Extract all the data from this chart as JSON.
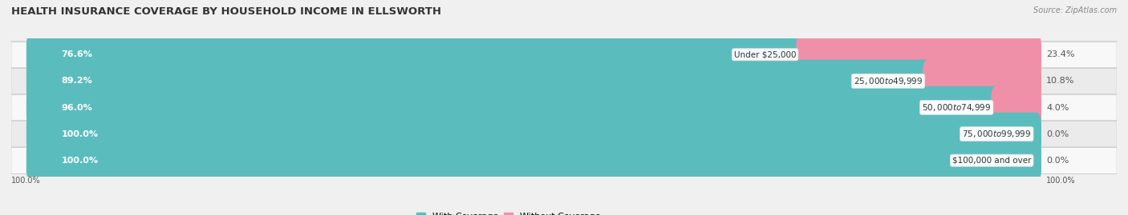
{
  "title": "HEALTH INSURANCE COVERAGE BY HOUSEHOLD INCOME IN ELLSWORTH",
  "source": "Source: ZipAtlas.com",
  "categories": [
    "Under $25,000",
    "$25,000 to $49,999",
    "$50,000 to $74,999",
    "$75,000 to $99,999",
    "$100,000 and over"
  ],
  "with_coverage": [
    76.6,
    89.2,
    96.0,
    100.0,
    100.0
  ],
  "without_coverage": [
    23.4,
    10.8,
    4.0,
    0.0,
    0.0
  ],
  "color_with": "#5bbcbe",
  "color_without": "#f090a8",
  "bar_height": 0.62,
  "background_color": "#f0f0f0",
  "row_bg_even": "#f8f8f8",
  "row_bg_odd": "#ebebeb",
  "title_fontsize": 9.5,
  "label_fontsize": 8,
  "source_fontsize": 7,
  "legend_fontsize": 8,
  "axis_label": "100.0%"
}
